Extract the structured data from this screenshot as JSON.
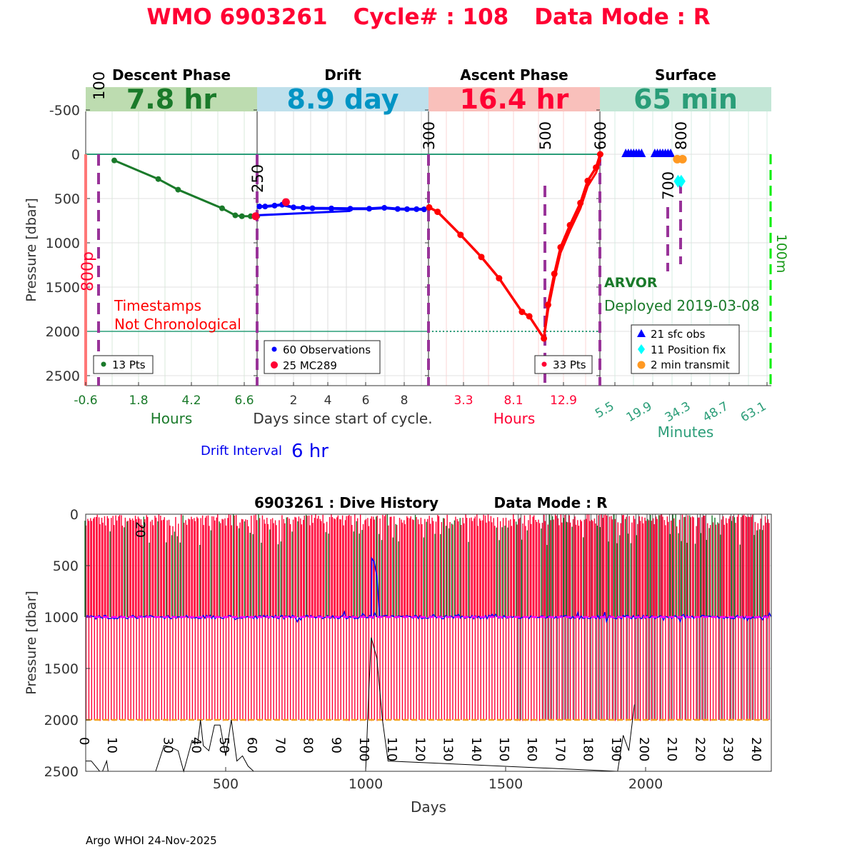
{
  "title": {
    "wmo": "WMO 6903261",
    "cycle": "Cycle# : 108",
    "mode": "Data Mode : R",
    "color": "#ff0033"
  },
  "top": {
    "ylabel": "Pressure [dbar]",
    "yticks": [
      "-500",
      "0",
      "500",
      "1000",
      "1500",
      "2000",
      "2500"
    ],
    "ytick_values": [
      -500,
      0,
      500,
      1000,
      1500,
      2000,
      2500
    ],
    "center_xlabel": "Days since start of cycle.",
    "drift_interval_label": "Drift Interval",
    "drift_interval_value": "6 hr",
    "phases": [
      {
        "name": "Descent Phase",
        "duration": "7.8 hr",
        "band": "#bddcb0",
        "color": "#1a7a2a",
        "ticks": [
          "-0.6",
          "1.8",
          "4.2",
          "6.6"
        ],
        "unit": "Hours"
      },
      {
        "name": "Drift",
        "duration": "8.9 day",
        "band": "#bfe0ec",
        "color": "#0094c4",
        "ticks": [
          "2",
          "4",
          "6",
          "8"
        ],
        "unit": ""
      },
      {
        "name": "Ascent Phase",
        "duration": "16.4 hr",
        "band": "#f9c0bb",
        "color": "#ff0033",
        "ticks": [
          "3.3",
          "8.1",
          "12.9"
        ],
        "unit": "Hours"
      },
      {
        "name": "Surface",
        "duration": "65 min",
        "band": "#c3e6d6",
        "color": "#2a9d78",
        "ticks": [
          "5.5",
          "19.9",
          "34.3",
          "48.7",
          "63.1"
        ],
        "unit": "Minutes"
      }
    ],
    "vlines": [
      "100",
      "250",
      "300",
      "500",
      "600",
      "700",
      "800"
    ],
    "annotations": {
      "timestamps": "Timestamps",
      "not_chrono": "Not Chronological",
      "float_type": "ARVOR",
      "deployed": "Deployed 2019-03-08",
      "left_line": "800p",
      "right_line": "100m"
    },
    "legends": {
      "descent": "13 Pts",
      "drift_obs": "60 Observations",
      "drift_mc": "25 MC289",
      "ascent": "33 Pts",
      "sfc_obs": "21 sfc obs",
      "position_fix": "11 Position fix",
      "transmit": "2 min transmit"
    }
  },
  "bottom": {
    "title": "6903261 : Dive History",
    "mode": "Data Mode : R",
    "ylabel": "Pressure [dbar]",
    "xlabel": "Days",
    "yticks": [
      "0",
      "500",
      "1000",
      "1500",
      "2000",
      "2500"
    ],
    "xticks": [
      "500",
      "1000",
      "1500",
      "2000"
    ],
    "cycle_labels": [
      "0",
      "10",
      "20",
      "30",
      "40",
      "50",
      "60",
      "70",
      "80",
      "90",
      "100",
      "110",
      "120",
      "130",
      "140",
      "150",
      "160",
      "170",
      "180",
      "190",
      "200",
      "210",
      "220",
      "230",
      "240"
    ]
  },
  "footer": "Argo WHOI 24-Nov-2025",
  "chart_data": [
    {
      "type": "line",
      "title": "WMO 6903261 Cycle# : 108 Data Mode : R",
      "ylabel": "Pressure [dbar]",
      "ylim": [
        -500,
        2600
      ],
      "descent": {
        "xunit": "hours",
        "xlim": [
          -0.6,
          7.8
        ],
        "x": [
          0.7,
          2.7,
          3.6,
          5.6,
          6.2,
          6.5,
          6.9,
          7.2
        ],
        "y": [
          70,
          280,
          400,
          610,
          690,
          700,
          700,
          700
        ]
      },
      "drift": {
        "xunit": "days",
        "xlim": [
          0,
          9
        ],
        "x": [
          0.2,
          0.5,
          1.0,
          1.4,
          2.0,
          2.5,
          3.0,
          4.0,
          5.0,
          6.0,
          6.8,
          7.5,
          8.0,
          8.5,
          8.9
        ],
        "y": [
          590,
          590,
          580,
          570,
          600,
          605,
          610,
          612,
          615,
          615,
          605,
          618,
          620,
          620,
          622
        ],
        "x2": [
          0,
          5.0
        ],
        "y2": [
          690,
          640
        ],
        "mc_x": [
          0,
          1.6
        ],
        "mc_y": [
          700,
          540
        ]
      },
      "ascent": {
        "xunit": "hours",
        "xlim": [
          0,
          16.4
        ],
        "x": [
          0,
          0.8,
          3.0,
          5.0,
          6.7,
          8.9,
          9.6,
          11.0,
          11.4,
          12.0,
          12.6,
          13.5,
          14.5,
          15.2,
          16.0,
          16.4
        ],
        "y": [
          600,
          650,
          910,
          1160,
          1400,
          1780,
          1830,
          2080,
          1700,
          1350,
          1050,
          800,
          550,
          300,
          150,
          0
        ]
      },
      "surface": {
        "xunit": "minutes",
        "xlim": [
          0,
          65
        ],
        "sfc_obs_x": [
          9.5,
          10.5,
          11.5,
          12.5,
          13.5,
          14.5,
          15.5,
          20.5,
          21.5,
          22.5,
          23.5,
          24.5,
          25.5,
          26.5
        ],
        "sfc_obs_y": [
          0,
          0,
          0,
          0,
          0,
          0,
          0,
          0,
          0,
          0,
          0,
          0,
          0,
          0
        ],
        "fix_x": [
          29.3,
          30.5
        ],
        "fix_y": [
          -50,
          -50
        ],
        "transmit_x": [
          29.0,
          31.0
        ],
        "transmit_y": [
          55,
          55
        ]
      },
      "reference_pressure": 2000
    },
    {
      "type": "line",
      "title": "6903261 : Dive History Data Mode : R",
      "xlabel": "Days",
      "ylabel": "Pressure [dbar]",
      "xlim": [
        0,
        2450
      ],
      "ylim": [
        0,
        2500
      ],
      "cycles": 245,
      "days_per_cycle": 10,
      "drift_pressure": 1000,
      "profile_pressure": 2000,
      "bathymetry_x": [
        0,
        20,
        50,
        60,
        75,
        80,
        250,
        280,
        300,
        330,
        350,
        380,
        400,
        410,
        420,
        440,
        460,
        480,
        500,
        520,
        540,
        560,
        580,
        600,
        1000,
        1010,
        1020,
        1040,
        1060,
        1080,
        1900,
        1920,
        1940,
        1960
      ],
      "bathymetry_y": [
        2400,
        2400,
        2500,
        2500,
        2400,
        2500,
        2500,
        2250,
        2260,
        2300,
        2500,
        2200,
        2230,
        2000,
        2250,
        2300,
        2050,
        2050,
        2350,
        2000,
        2400,
        2350,
        2450,
        2500,
        2500,
        1800,
        1200,
        1400,
        2000,
        2400,
        2500,
        2150,
        2300,
        1850
      ]
    }
  ]
}
